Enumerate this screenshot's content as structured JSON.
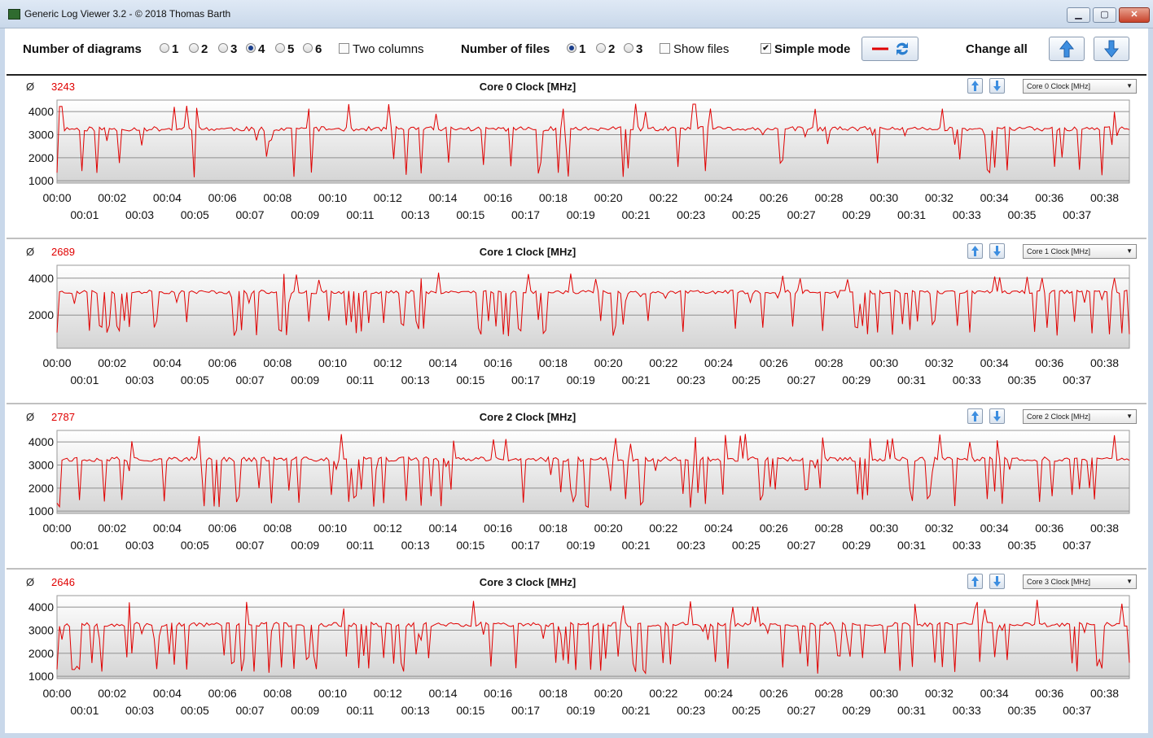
{
  "window": {
    "title": "Generic Log Viewer 3.2 - © 2018 Thomas Barth",
    "min": "▁",
    "max": "▢",
    "close": "✕"
  },
  "toolbar": {
    "num_diagrams_label": "Number of diagrams",
    "diagram_options": [
      "1",
      "2",
      "3",
      "4",
      "5",
      "6"
    ],
    "diagram_selected": "4",
    "two_columns_label": "Two columns",
    "two_columns_checked": false,
    "num_files_label": "Number of files",
    "file_options": [
      "1",
      "2",
      "3"
    ],
    "file_selected": "1",
    "show_files_label": "Show files",
    "show_files_checked": false,
    "simple_mode_label": "Simple mode",
    "simple_mode_checked": true,
    "change_all_label": "Change all",
    "line_color": "#e00000"
  },
  "x_axis": {
    "major_labels": [
      "00:00",
      "00:02",
      "00:04",
      "00:06",
      "00:08",
      "00:10",
      "00:12",
      "00:14",
      "00:16",
      "00:18",
      "00:20",
      "00:22",
      "00:24",
      "00:26",
      "00:28",
      "00:30",
      "00:32",
      "00:34",
      "00:36",
      "00:38"
    ],
    "minor_labels": [
      "00:01",
      "00:03",
      "00:05",
      "00:07",
      "00:09",
      "00:11",
      "00:13",
      "00:15",
      "00:17",
      "00:19",
      "00:21",
      "00:23",
      "00:25",
      "00:27",
      "00:29",
      "00:31",
      "00:33",
      "00:35",
      "00:37"
    ],
    "range_minutes": [
      0,
      38.9
    ]
  },
  "panels": [
    {
      "title": "Core 0 Clock [MHz]",
      "avg_symbol": "Ø",
      "avg": "3243",
      "select": "Core 0 Clock [MHz]",
      "yticks": [
        "4000",
        "3000",
        "2000",
        "1000"
      ],
      "ylim": [
        900,
        4500
      ],
      "base": 3250,
      "seed": 11,
      "dip_rate": 0.07,
      "dip_low": 1150
    },
    {
      "title": "Core 1 Clock [MHz]",
      "avg_symbol": "Ø",
      "avg": "2689",
      "select": "Core 1 Clock [MHz]",
      "yticks": [
        "4000",
        "2000"
      ],
      "ylim": [
        200,
        4700
      ],
      "base": 3250,
      "seed": 23,
      "dip_rate": 0.16,
      "dip_low": 850
    },
    {
      "title": "Core 2 Clock [MHz]",
      "avg_symbol": "Ø",
      "avg": "2787",
      "select": "Core 2 Clock [MHz]",
      "yticks": [
        "4000",
        "3000",
        "2000",
        "1000"
      ],
      "ylim": [
        900,
        4500
      ],
      "base": 3250,
      "seed": 37,
      "dip_rate": 0.15,
      "dip_low": 1150
    },
    {
      "title": "Core 3 Clock [MHz]",
      "avg_symbol": "Ø",
      "avg": "2646",
      "select": "Core 3 Clock [MHz]",
      "yticks": [
        "4000",
        "3000",
        "2000",
        "1000"
      ],
      "ylim": [
        900,
        4500
      ],
      "base": 3250,
      "seed": 53,
      "dip_rate": 0.18,
      "dip_low": 1100
    }
  ]
}
